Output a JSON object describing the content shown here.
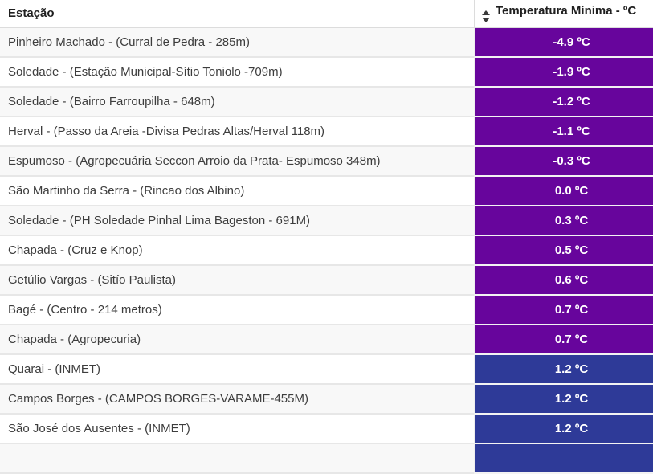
{
  "table": {
    "header": {
      "station_label": "Estação",
      "temp_label": "Temperatura Mínima - ºC"
    },
    "colors": {
      "purple": "#67059C",
      "blue": "#2E3A98",
      "stripe_gray": "#f8f8f8",
      "header_text": "#1f1f1f",
      "row_text": "#3d3d3d"
    },
    "rows": [
      {
        "station": "Pinheiro Machado - (Curral de Pedra - 285m)",
        "temp": "-4.9 ºC",
        "color": "purple"
      },
      {
        "station": "Soledade - (Estação Municipal-Sítio Toniolo -709m)",
        "temp": "-1.9 ºC",
        "color": "purple"
      },
      {
        "station": "Soledade - (Bairro Farroupilha - 648m)",
        "temp": "-1.2 ºC",
        "color": "purple"
      },
      {
        "station": "Herval - (Passo da Areia -Divisa Pedras Altas/Herval 118m)",
        "temp": "-1.1 ºC",
        "color": "purple"
      },
      {
        "station": "Espumoso - (Agropecuária Seccon Arroio da Prata- Espumoso 348m)",
        "temp": "-0.3 ºC",
        "color": "purple"
      },
      {
        "station": "São Martinho da Serra - (Rincao dos Albino)",
        "temp": "0.0 ºC",
        "color": "purple"
      },
      {
        "station": "Soledade - (PH Soledade Pinhal Lima Bageston - 691M)",
        "temp": "0.3 ºC",
        "color": "purple"
      },
      {
        "station": "Chapada - (Cruz e Knop)",
        "temp": "0.5 ºC",
        "color": "purple"
      },
      {
        "station": "Getúlio Vargas - (Sitío Paulista)",
        "temp": "0.6 ºC",
        "color": "purple"
      },
      {
        "station": "Bagé - (Centro - 214 metros)",
        "temp": "0.7 ºC",
        "color": "purple"
      },
      {
        "station": "Chapada - (Agropecuria)",
        "temp": "0.7 ºC",
        "color": "purple"
      },
      {
        "station": "Quarai - (INMET)",
        "temp": "1.2 ºC",
        "color": "blue"
      },
      {
        "station": "Campos Borges - (CAMPOS BORGES-VARAME-455M)",
        "temp": "1.2 ºC",
        "color": "blue"
      },
      {
        "station": "São José dos Ausentes - (INMET)",
        "temp": "1.2 ºC",
        "color": "blue"
      },
      {
        "station": "",
        "temp": "",
        "color": "blue"
      }
    ]
  }
}
